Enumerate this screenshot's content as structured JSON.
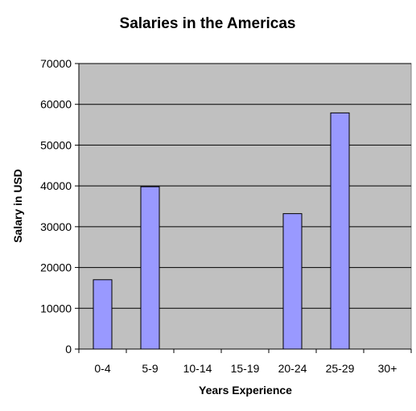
{
  "chart_data": {
    "type": "bar",
    "title": "Salaries in the Americas",
    "xlabel": "Years Experience",
    "ylabel": "Salary in USD",
    "categories": [
      "0-4",
      "5-9",
      "10-14",
      "15-19",
      "20-24",
      "25-29",
      "30+"
    ],
    "values": [
      17000,
      39800,
      0,
      0,
      33200,
      57900,
      0
    ],
    "ylim": [
      0,
      70000
    ],
    "yticks": [
      0,
      10000,
      20000,
      30000,
      40000,
      50000,
      60000,
      70000
    ],
    "grid": true,
    "legend": "none",
    "colors": {
      "plot_background": "#c0c0c0",
      "bar_fill": "#9999ff",
      "bar_stroke": "#000000",
      "gridline": "#000000"
    }
  }
}
